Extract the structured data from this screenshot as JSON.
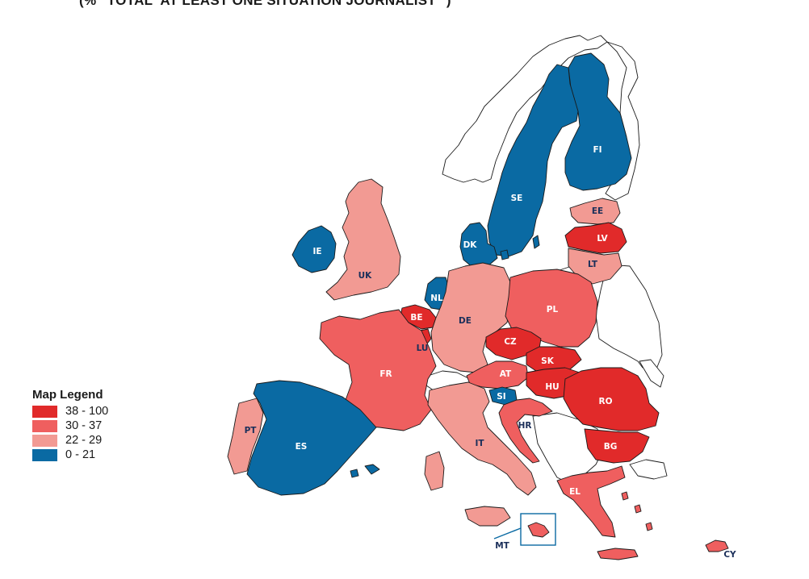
{
  "title": "(%  \"TOTAL 'AT LEAST ONE SITUATION JOURNALIST'\")",
  "legend": {
    "title": "Map Legend",
    "items": [
      {
        "label": "38 - 100",
        "color": "#e12a2a"
      },
      {
        "label": "30 - 37",
        "color": "#ef5f5f"
      },
      {
        "label": "22 - 29",
        "color": "#f29a93"
      },
      {
        "label": "0 - 21",
        "color": "#0a6aa3"
      }
    ]
  },
  "countries": [
    {
      "code": "FI",
      "band": 3
    },
    {
      "code": "SE",
      "band": 3
    },
    {
      "code": "EE",
      "band": 2
    },
    {
      "code": "LV",
      "band": 0
    },
    {
      "code": "LT",
      "band": 2
    },
    {
      "code": "DK",
      "band": 3
    },
    {
      "code": "IE",
      "band": 3
    },
    {
      "code": "UK",
      "band": 2
    },
    {
      "code": "NL",
      "band": 3
    },
    {
      "code": "BE",
      "band": 0
    },
    {
      "code": "LU",
      "band": 0
    },
    {
      "code": "DE",
      "band": 2
    },
    {
      "code": "PL",
      "band": 1
    },
    {
      "code": "CZ",
      "band": 0
    },
    {
      "code": "SK",
      "band": 0
    },
    {
      "code": "AT",
      "band": 1
    },
    {
      "code": "HU",
      "band": 0
    },
    {
      "code": "SI",
      "band": 3
    },
    {
      "code": "HR",
      "band": 1
    },
    {
      "code": "RO",
      "band": 0
    },
    {
      "code": "BG",
      "band": 0
    },
    {
      "code": "FR",
      "band": 1
    },
    {
      "code": "ES",
      "band": 3
    },
    {
      "code": "PT",
      "band": 2
    },
    {
      "code": "IT",
      "band": 2
    },
    {
      "code": "EL",
      "band": 1
    },
    {
      "code": "MT",
      "band": 1
    },
    {
      "code": "CY",
      "band": 1
    }
  ]
}
